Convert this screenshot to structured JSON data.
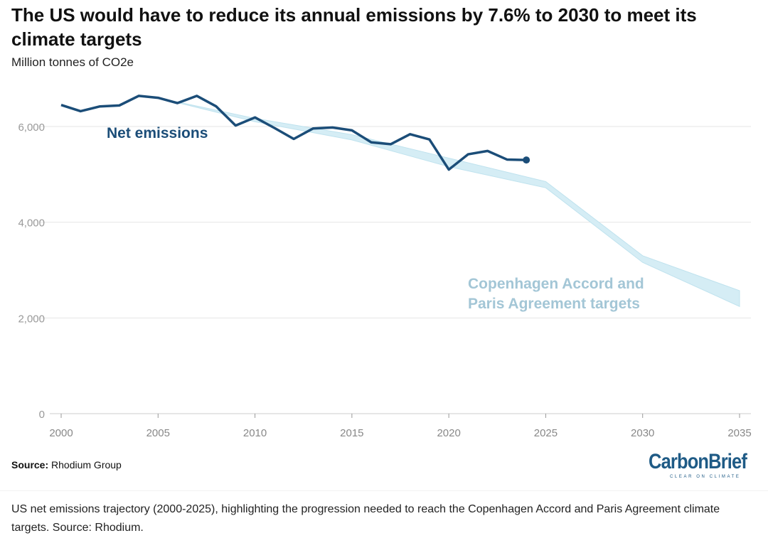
{
  "title": "The US would have to reduce its annual emissions by 7.6% to 2030 to meet its climate targets",
  "subtitle": "Million tonnes of CO2e",
  "source_label": "Source:",
  "source_text": "Rhodium Group",
  "logo": {
    "text": "CarbonBrief",
    "tagline": "CLEAR ON CLIMATE"
  },
  "caption": "US net emissions trajectory (2000-2025), highlighting the progression needed to reach the Copenhagen Accord and Paris Agreement climate targets. Source: Rhodium.",
  "colors": {
    "emissions_line": "#1b4d78",
    "target_band": "#d5edf5",
    "target_label": "#a3c6d6",
    "axis_text": "#999999",
    "grid": "#e6e6e6"
  },
  "chart_data": {
    "type": "line",
    "title": "The US would have to reduce its annual emissions by 7.6% to 2030 to meet its climate targets",
    "ylabel": "Million tonnes of CO2e",
    "xlim": [
      2000,
      2035
    ],
    "ylim": [
      0,
      6500
    ],
    "x_ticks": [
      2000,
      2005,
      2010,
      2015,
      2020,
      2025,
      2030,
      2035
    ],
    "y_ticks": [
      0,
      2000,
      4000,
      6000
    ],
    "y_tick_labels": [
      "0",
      "2,000",
      "4,000",
      "6,000"
    ],
    "grid": true,
    "series": [
      {
        "name": "Net emissions",
        "kind": "line",
        "x": [
          2000,
          2001,
          2002,
          2003,
          2004,
          2005,
          2006,
          2007,
          2008,
          2009,
          2010,
          2011,
          2012,
          2013,
          2014,
          2015,
          2016,
          2017,
          2018,
          2019,
          2020,
          2021,
          2022,
          2023,
          2024
        ],
        "y": [
          6450,
          6320,
          6420,
          6440,
          6640,
          6600,
          6490,
          6640,
          6420,
          6020,
          6190,
          5970,
          5740,
          5960,
          5980,
          5920,
          5670,
          5630,
          5840,
          5730,
          5100,
          5420,
          5490,
          5310,
          5300
        ]
      },
      {
        "name": "Copenhagen Accord and Paris Agreement targets",
        "kind": "band",
        "x": [
          2005,
          2010,
          2015,
          2020,
          2025,
          2030,
          2035
        ],
        "upper": [
          6600,
          6170,
          5830,
          5340,
          4850,
          3300,
          2570
        ],
        "lower": [
          6600,
          6100,
          5720,
          5160,
          4720,
          3160,
          2240
        ]
      }
    ]
  }
}
